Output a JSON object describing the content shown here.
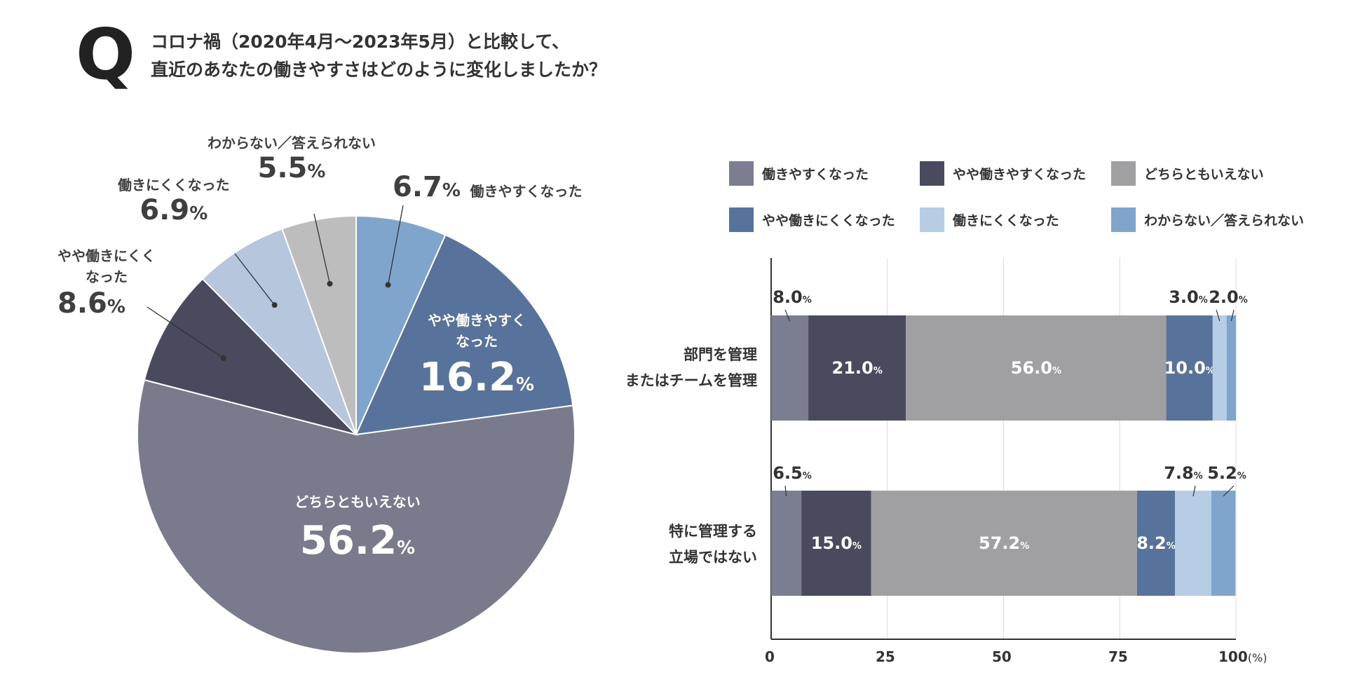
{
  "title": {
    "q_mark": "Q",
    "line1": "コロナ禍（2020年4月〜2023年5月）と比較して、",
    "line2": "直近のあなたの働きやすさはどのように変化しましたか？"
  },
  "colors": {
    "c1": "#7b7d91",
    "c2": "#494a5d",
    "c3": "#a0a0a2",
    "c4": "#57729b",
    "c5": "#b7cde6",
    "c6": "#80a5cc",
    "c5pie": "#b5c6dd",
    "c3pie": "#bdbdbd",
    "c1pie": "#797a8c"
  },
  "pie_labels": {
    "s1": {
      "name": "働きやすくなった",
      "num": "6.7",
      "unit": "%"
    },
    "s2": {
      "name1": "やや働きやすく",
      "name2": "なった",
      "num": "16.2",
      "unit": "%"
    },
    "s3": {
      "name": "どちらともいえない",
      "num": "56.2",
      "unit": "%"
    },
    "s4": {
      "name1": "やや働きにくく",
      "name2": "なった",
      "num": "8.6",
      "unit": "%"
    },
    "s5": {
      "name": "働きにくくなった",
      "num": "6.9",
      "unit": "%"
    },
    "s6": {
      "name": "わからない／答えられない",
      "num": "5.5",
      "unit": "%"
    }
  },
  "legend": [
    "働きやすくなった",
    "やや働きやすくなった",
    "どちらともいえない",
    "やや働きにくくなった",
    "働きにくくなった",
    "わからない／答えられない"
  ],
  "bar_categories": {
    "row1_a": "部門を管理",
    "row1_b": "またはチームを管理",
    "row2_a": "特に管理する",
    "row2_b": "立場ではない"
  },
  "axis": {
    "t0": "0",
    "t25": "25",
    "t50": "50",
    "t75": "75",
    "t100": "100",
    "unit": "(%)"
  },
  "chart_data": [
    {
      "type": "pie",
      "categories": [
        "働きやすくなった",
        "やや働きやすくなった",
        "どちらともいえない",
        "やや働きにくくなった",
        "働きにくくなった",
        "わからない／答えられない"
      ],
      "values": [
        6.7,
        16.2,
        56.2,
        8.6,
        6.9,
        5.5
      ],
      "title": ""
    },
    {
      "type": "bar",
      "orientation": "horizontal-stacked",
      "categories": [
        "部門を管理またはチームを管理",
        "特に管理する立場ではない"
      ],
      "series": [
        {
          "name": "働きやすくなった",
          "values": [
            8.0,
            6.5
          ],
          "labels": [
            "8.0",
            "6.5"
          ]
        },
        {
          "name": "やや働きやすくなった",
          "values": [
            21.0,
            15.0
          ],
          "labels": [
            "21.0",
            "15.0"
          ]
        },
        {
          "name": "どちらともいえない",
          "values": [
            56.0,
            57.2
          ],
          "labels": [
            "56.0",
            "57.2"
          ]
        },
        {
          "name": "やや働きにくくなった",
          "values": [
            10.0,
            8.2
          ],
          "labels": [
            "10.0",
            "8.2"
          ]
        },
        {
          "name": "働きにくくなった",
          "values": [
            3.0,
            7.8
          ],
          "labels": [
            "3.0",
            "7.8"
          ]
        },
        {
          "name": "わからない／答えられない",
          "values": [
            2.0,
            5.2
          ],
          "labels": [
            "2.0",
            "5.2"
          ]
        }
      ],
      "xlim": [
        0,
        100
      ],
      "xticks": [
        0,
        25,
        50,
        75,
        100
      ],
      "xlabel": "(%)",
      "grid": true
    }
  ]
}
